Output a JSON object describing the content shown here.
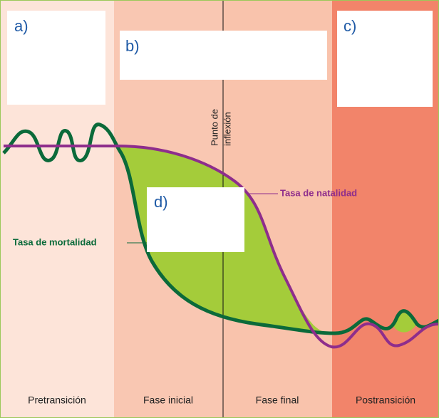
{
  "boxes": {
    "a": "a)",
    "b": "b)",
    "c": "c)",
    "d": "d)"
  },
  "phases": [
    "Pretransición",
    "Fase inicial",
    "Fase final",
    "Postransición"
  ],
  "inflection": [
    "Punto de",
    "inflexión"
  ],
  "curves": {
    "birth": "Tasa de natalidad",
    "death": "Tasa de mortalidad"
  }
}
